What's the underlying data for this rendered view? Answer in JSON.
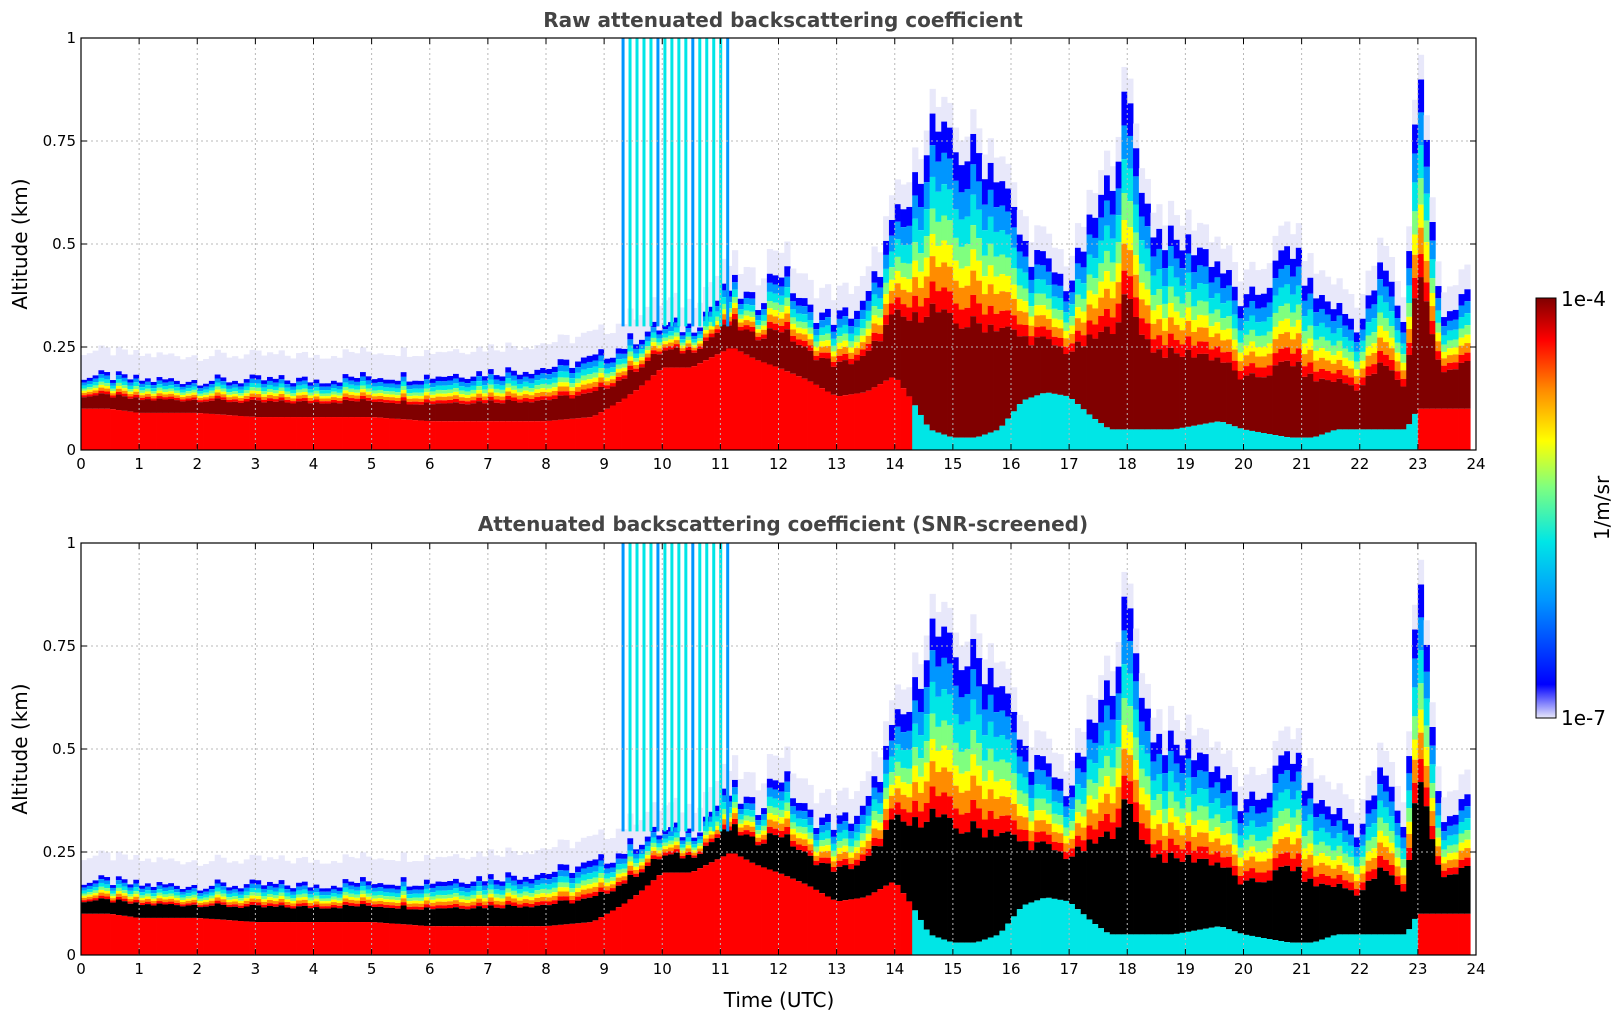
{
  "chart_data": [
    {
      "type": "heatmap",
      "title": "Raw attenuated backscattering coefficient",
      "xlabel": "",
      "ylabel": "Altitude (km)",
      "xlim": [
        0,
        24
      ],
      "ylim": [
        0,
        1
      ],
      "x_ticks": [
        "0",
        "1",
        "2",
        "3",
        "4",
        "5",
        "6",
        "7",
        "8",
        "9",
        "10",
        "11",
        "12",
        "13",
        "14",
        "15",
        "16",
        "17",
        "18",
        "19",
        "20",
        "21",
        "22",
        "23",
        "24"
      ],
      "y_ticks": [
        "0",
        "0.25",
        "0.5",
        "0.75",
        "1"
      ],
      "grid": true,
      "x_profile_hours": [
        0,
        0.5,
        1,
        1.5,
        2,
        3,
        4,
        5,
        6,
        7,
        8,
        8.8,
        9.3,
        9.6,
        10,
        10.5,
        11.2,
        11.6,
        12,
        12.5,
        13,
        13.5,
        14,
        14.3,
        14.6,
        15,
        15.4,
        15.8,
        16.2,
        16.6,
        17,
        17.4,
        17.7,
        18,
        18.4,
        18.8,
        19.2,
        19.6,
        20,
        20.4,
        20.8,
        21.2,
        21.6,
        22,
        22.4,
        22.8,
        23,
        23.4,
        23.8
      ],
      "layer_top_km": [
        0.18,
        0.18,
        0.17,
        0.17,
        0.17,
        0.17,
        0.17,
        0.18,
        0.18,
        0.19,
        0.2,
        0.22,
        0.25,
        0.28,
        0.3,
        0.3,
        0.4,
        0.35,
        0.45,
        0.34,
        0.32,
        0.35,
        0.55,
        0.6,
        0.8,
        0.72,
        0.72,
        0.68,
        0.5,
        0.45,
        0.4,
        0.55,
        0.65,
        0.85,
        0.55,
        0.5,
        0.5,
        0.45,
        0.35,
        0.4,
        0.5,
        0.38,
        0.35,
        0.3,
        0.45,
        0.3,
        1.0,
        0.3,
        0.4
      ],
      "layer_base_km": [
        0.1,
        0.1,
        0.09,
        0.09,
        0.09,
        0.08,
        0.08,
        0.08,
        0.07,
        0.07,
        0.07,
        0.08,
        0.12,
        0.15,
        0.2,
        0.2,
        0.25,
        0.22,
        0.2,
        0.17,
        0.13,
        0.14,
        0.18,
        0.12,
        0.05,
        0.03,
        0.03,
        0.05,
        0.12,
        0.14,
        0.13,
        0.08,
        0.05,
        0.05,
        0.05,
        0.05,
        0.06,
        0.07,
        0.05,
        0.04,
        0.03,
        0.03,
        0.05,
        0.05,
        0.05,
        0.05,
        0.1,
        0.1,
        0.1
      ]
    },
    {
      "type": "heatmap",
      "title": "Attenuated backscattering coefficient (SNR-screened)",
      "xlabel": "Time (UTC)",
      "ylabel": "Altitude (km)",
      "xlim": [
        0,
        24
      ],
      "ylim": [
        0,
        1
      ],
      "x_ticks": [
        "0",
        "1",
        "2",
        "3",
        "4",
        "5",
        "6",
        "7",
        "8",
        "9",
        "10",
        "11",
        "12",
        "13",
        "14",
        "15",
        "16",
        "17",
        "18",
        "19",
        "20",
        "21",
        "22",
        "23",
        "24"
      ],
      "y_ticks": [
        "0",
        "0.25",
        "0.5",
        "0.75",
        "1"
      ],
      "grid": true,
      "saturated_color": "#000000"
    }
  ],
  "colorbar": {
    "label": "1/m/sr",
    "max_label": "1e-4",
    "min_label": "1e-7",
    "colors": [
      "#e8e8fa",
      "#0000ff",
      "#0096ff",
      "#00e6e6",
      "#7fff7f",
      "#ffff00",
      "#ff8c00",
      "#ff0000",
      "#800000"
    ]
  }
}
